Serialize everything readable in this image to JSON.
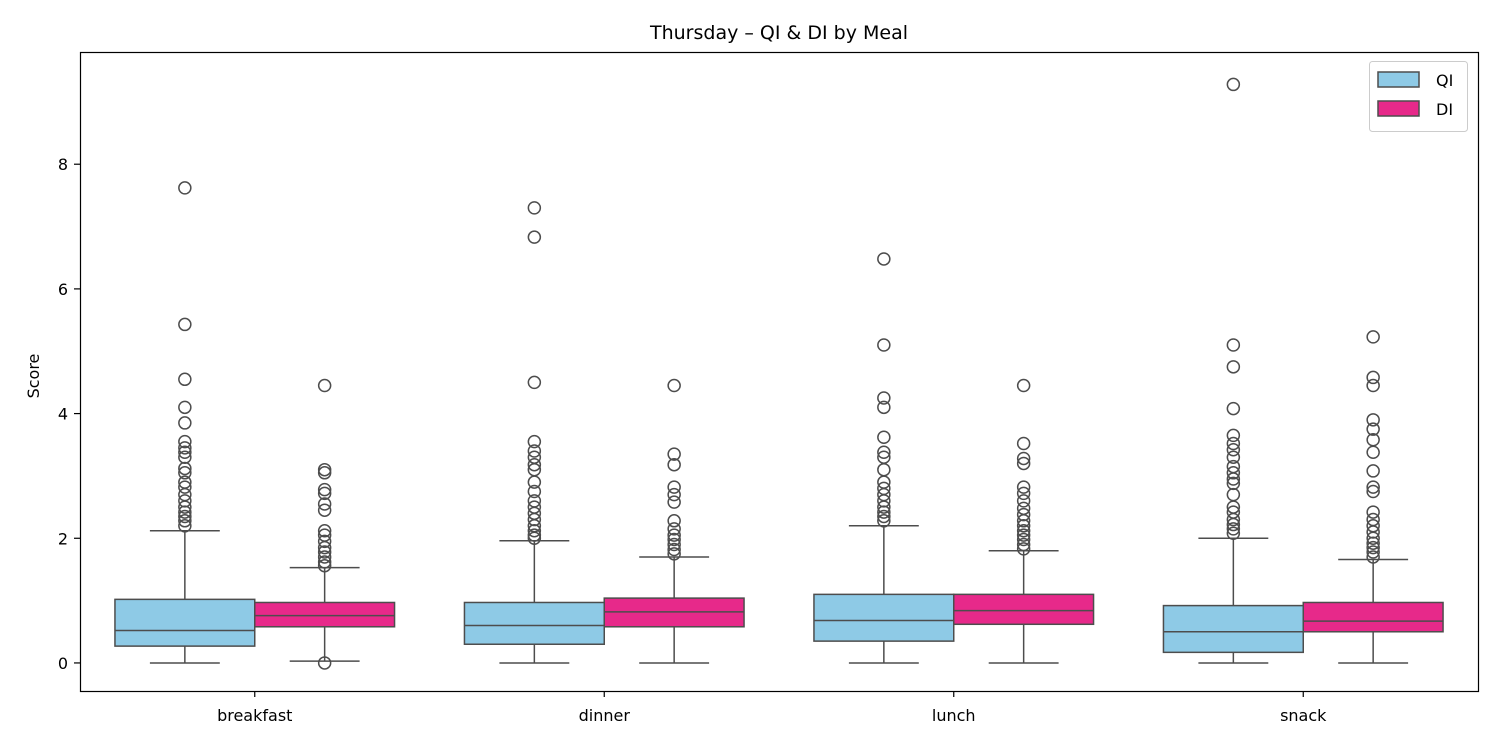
{
  "chart_data": {
    "type": "box",
    "title": "Thursday – QI & DI by Meal",
    "xlabel": "",
    "ylabel": "Score",
    "ylim": [
      -0.45,
      9.8
    ],
    "yticks": [
      0,
      2,
      4,
      6,
      8
    ],
    "grid": false,
    "legend_position": "top-right",
    "categories": [
      "breakfast",
      "dinner",
      "lunch",
      "snack"
    ],
    "series": [
      {
        "name": "QI",
        "color": "#8ecae6",
        "boxes": [
          {
            "category": "breakfast",
            "whisker_low": 0.0,
            "q1": 0.27,
            "median": 0.52,
            "q3": 1.02,
            "whisker_high": 2.12,
            "outliers": [
              7.62,
              5.43,
              4.55,
              4.1,
              3.85,
              3.55,
              3.45,
              3.38,
              3.3,
              3.12,
              3.05,
              2.9,
              2.82,
              2.7,
              2.6,
              2.5,
              2.42,
              2.35,
              2.28,
              2.2
            ]
          },
          {
            "category": "dinner",
            "whisker_low": 0.0,
            "q1": 0.3,
            "median": 0.6,
            "q3": 0.97,
            "whisker_high": 1.96,
            "outliers": [
              7.3,
              6.83,
              4.5,
              3.55,
              3.4,
              3.3,
              3.18,
              3.1,
              2.9,
              2.75,
              2.6,
              2.5,
              2.4,
              2.3,
              2.2,
              2.12,
              2.05,
              2.0
            ]
          },
          {
            "category": "lunch",
            "whisker_low": 0.0,
            "q1": 0.35,
            "median": 0.68,
            "q3": 1.1,
            "whisker_high": 2.2,
            "outliers": [
              6.48,
              5.1,
              4.25,
              4.1,
              3.62,
              3.38,
              3.3,
              3.1,
              2.9,
              2.8,
              2.7,
              2.6,
              2.5,
              2.42,
              2.35,
              2.28
            ]
          },
          {
            "category": "snack",
            "whisker_low": 0.0,
            "q1": 0.17,
            "median": 0.5,
            "q3": 0.92,
            "whisker_high": 2.0,
            "outliers": [
              9.28,
              5.1,
              4.75,
              4.08,
              3.65,
              3.52,
              3.42,
              3.3,
              3.15,
              3.05,
              2.95,
              2.88,
              2.7,
              2.5,
              2.42,
              2.3,
              2.22,
              2.15,
              2.08
            ]
          }
        ]
      },
      {
        "name": "DI",
        "color": "#e7298a",
        "boxes": [
          {
            "category": "breakfast",
            "whisker_low": 0.03,
            "q1": 0.58,
            "median": 0.76,
            "q3": 0.97,
            "whisker_high": 1.53,
            "outliers": [
              4.45,
              3.1,
              3.05,
              2.78,
              2.72,
              2.55,
              2.45,
              2.12,
              2.05,
              1.95,
              1.85,
              1.78,
              1.7,
              1.62,
              1.56,
              0.0
            ]
          },
          {
            "category": "dinner",
            "whisker_low": 0.0,
            "q1": 0.58,
            "median": 0.82,
            "q3": 1.04,
            "whisker_high": 1.7,
            "outliers": [
              4.45,
              3.35,
              3.18,
              2.82,
              2.7,
              2.58,
              2.28,
              2.15,
              2.05,
              1.98,
              1.9,
              1.82,
              1.75
            ]
          },
          {
            "category": "lunch",
            "whisker_low": 0.0,
            "q1": 0.62,
            "median": 0.84,
            "q3": 1.1,
            "whisker_high": 1.8,
            "outliers": [
              4.45,
              3.52,
              3.28,
              3.2,
              2.82,
              2.72,
              2.6,
              2.48,
              2.38,
              2.28,
              2.2,
              2.12,
              2.05,
              1.98,
              1.9,
              1.83
            ]
          },
          {
            "category": "snack",
            "whisker_low": 0.0,
            "q1": 0.5,
            "median": 0.67,
            "q3": 0.97,
            "whisker_high": 1.66,
            "outliers": [
              5.23,
              4.58,
              4.45,
              3.9,
              3.75,
              3.58,
              3.38,
              3.08,
              2.82,
              2.75,
              2.42,
              2.3,
              2.2,
              2.1,
              2.0,
              1.92,
              1.85,
              1.78,
              1.7
            ]
          }
        ]
      }
    ]
  }
}
